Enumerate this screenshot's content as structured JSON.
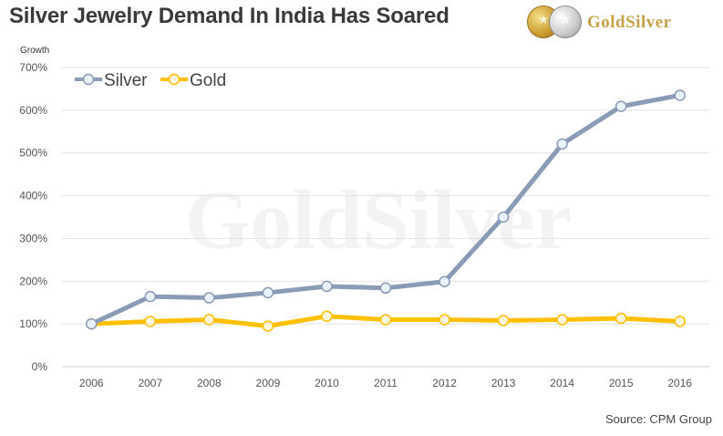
{
  "header": {
    "title": "Silver Jewelry Demand In India Has Soared",
    "logo_text": "GoldSilver"
  },
  "source": "Source: CPM Group",
  "watermark": "GoldSilver",
  "colors": {
    "silver": "#8a9bb5",
    "gold": "#ffc000",
    "grid": "#e2e2e2"
  },
  "chart_data": {
    "type": "line",
    "title": "Silver Jewelry Demand In India Has Soared",
    "xlabel": "",
    "ylabel": "Growth",
    "x": [
      2006,
      2007,
      2008,
      2009,
      2010,
      2011,
      2012,
      2013,
      2014,
      2015,
      2016
    ],
    "ylim": [
      0,
      700
    ],
    "yticks": [
      0,
      100,
      200,
      300,
      400,
      500,
      600,
      700
    ],
    "ytick_labels": [
      "0%",
      "100%",
      "200%",
      "300%",
      "400%",
      "500%",
      "600%",
      "700%"
    ],
    "grid": true,
    "legend_position": "top-left",
    "series": [
      {
        "name": "Silver",
        "color": "#8a9bb5",
        "values": [
          100,
          164,
          161,
          173,
          188,
          184,
          199,
          350,
          521,
          609,
          635
        ]
      },
      {
        "name": "Gold",
        "color": "#ffc000",
        "values": [
          100,
          106,
          110,
          95,
          118,
          110,
          110,
          108,
          110,
          113,
          106
        ]
      }
    ]
  }
}
